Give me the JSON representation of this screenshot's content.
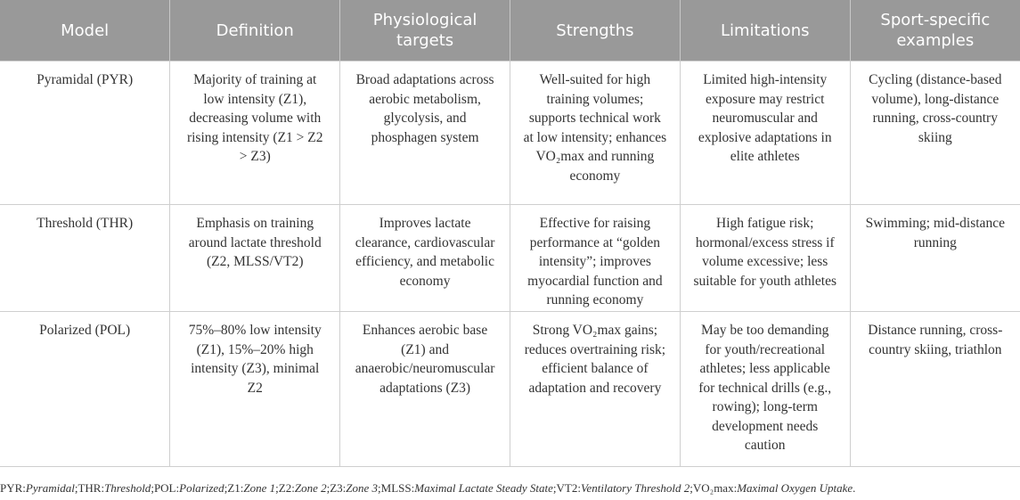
{
  "headers": [
    "Model",
    "Definition",
    "Physiological targets",
    "Strengths",
    "Limitations",
    "Sport-specific examples"
  ],
  "rows": [
    [
      "Pyramidal (PYR)",
      "Majority of training at low intensity (Z1), decreasing volume with rising intensity (Z1 > Z2 > Z3)",
      "Broad adaptations across aerobic metabolism, glycolysis, and phosphagen system",
      "Well-suited for high training volumes; supports technical work at low intensity; enhances VO₂max and running economy",
      "Limited high-intensity exposure may restrict neuromuscular and explosive adaptations in elite athletes",
      "Cycling (distance-based volume), long-distance running, cross-country skiing"
    ],
    [
      "Threshold (THR)",
      "Emphasis on training around lactate threshold (Z2, MLSS/VT2)",
      "Improves lactate clearance, cardiovascular efficiency, and metabolic economy",
      "Effective for raising performance at “golden intensity”; improves myocardial function and running economy",
      "High fatigue risk; hormonal/excess stress if volume excessive; less suitable for youth athletes",
      "Swimming; mid-distance running"
    ],
    [
      "Polarized (POL)",
      "75%–80% low intensity (Z1), 15%–20% high intensity (Z3), minimal Z2",
      "Enhances aerobic base (Z1) and anaerobic/neuromuscular adaptations (Z3)",
      "Strong VO₂max gains; reduces overtraining risk; efficient balance of adaptation and recovery",
      "May be too demanding for youth/recreational athletes; less applicable for technical drills (e.g., rowing); long-term development needs caution",
      "Distance running, cross-country skiing, triathlon"
    ]
  ],
  "footnote": [
    {
      "abbr": "PYR",
      "def": "Pyramidal"
    },
    {
      "abbr": "THR",
      "def": "Threshold"
    },
    {
      "abbr": "POL",
      "def": "Polarized"
    },
    {
      "abbr": "Z1",
      "def": "Zone 1"
    },
    {
      "abbr": "Z2",
      "def": "Zone 2"
    },
    {
      "abbr": "Z3",
      "def": "Zone 3"
    },
    {
      "abbr": "MLSS",
      "def": "Maximal Lactate Steady State"
    },
    {
      "abbr": "VT2",
      "def": "Ventilatory Threshold 2"
    },
    {
      "abbr": "VO₂max",
      "def": "Maximal Oxygen Uptake"
    }
  ]
}
